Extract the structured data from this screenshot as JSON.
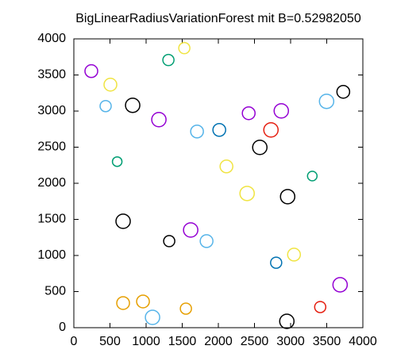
{
  "chart_data": {
    "type": "scatter",
    "marker": "circle-radius",
    "title": "BigLinearRadiusVariationForest mit B=0.52982050",
    "xlim": [
      0,
      4000
    ],
    "ylim": [
      0,
      4000
    ],
    "xticks": [
      0,
      500,
      1000,
      1500,
      2000,
      2500,
      3000,
      3500,
      4000
    ],
    "yticks": [
      0,
      500,
      1000,
      1500,
      2000,
      2500,
      3000,
      3500,
      4000
    ],
    "series": [
      {
        "color": "#000000",
        "x": [
          814,
          2574,
          682,
          2959,
          3729,
          2948,
          1320
        ],
        "y": [
          3080,
          2497,
          1474,
          1815,
          3267,
          88,
          1199
        ],
        "sizes": [
          99,
          99,
          99,
          99,
          88,
          99,
          77
        ]
      },
      {
        "color": "#9400d3",
        "x": [
          242,
          1177,
          2871,
          1617,
          3685,
          2420
        ],
        "y": [
          3553,
          2882,
          3003,
          1353,
          594,
          2970
        ],
        "sizes": [
          88,
          99,
          99,
          99,
          99,
          88
        ]
      },
      {
        "color": "#56b4e9",
        "x": [
          3498,
          1705,
          1089,
          1837,
          440
        ],
        "y": [
          3135,
          2717,
          143,
          1199,
          3069
        ],
        "sizes": [
          99,
          88,
          99,
          88,
          77
        ]
      },
      {
        "color": "#f0e442",
        "x": [
          506,
          2398,
          3047,
          2112,
          1529
        ],
        "y": [
          3366,
          1859,
          1012,
          2233,
          3872
        ],
        "sizes": [
          88,
          99,
          88,
          88,
          77
        ]
      },
      {
        "color": "#009e73",
        "x": [
          1309,
          3300,
          600
        ],
        "y": [
          3707,
          2100,
          2300
        ],
        "sizes": [
          77,
          66,
          66
        ]
      },
      {
        "color": "#e69f00",
        "x": [
          682,
          1551,
          957
        ],
        "y": [
          341,
          264,
          363
        ],
        "sizes": [
          88,
          77,
          88
        ]
      },
      {
        "color": "#e51e10",
        "x": [
          2728,
          3410
        ],
        "y": [
          2739,
          286
        ],
        "sizes": [
          99,
          77
        ]
      },
      {
        "color": "#0072b2",
        "x": [
          2013,
          2800
        ],
        "y": [
          2739,
          900
        ],
        "sizes": [
          88,
          77
        ]
      }
    ]
  }
}
